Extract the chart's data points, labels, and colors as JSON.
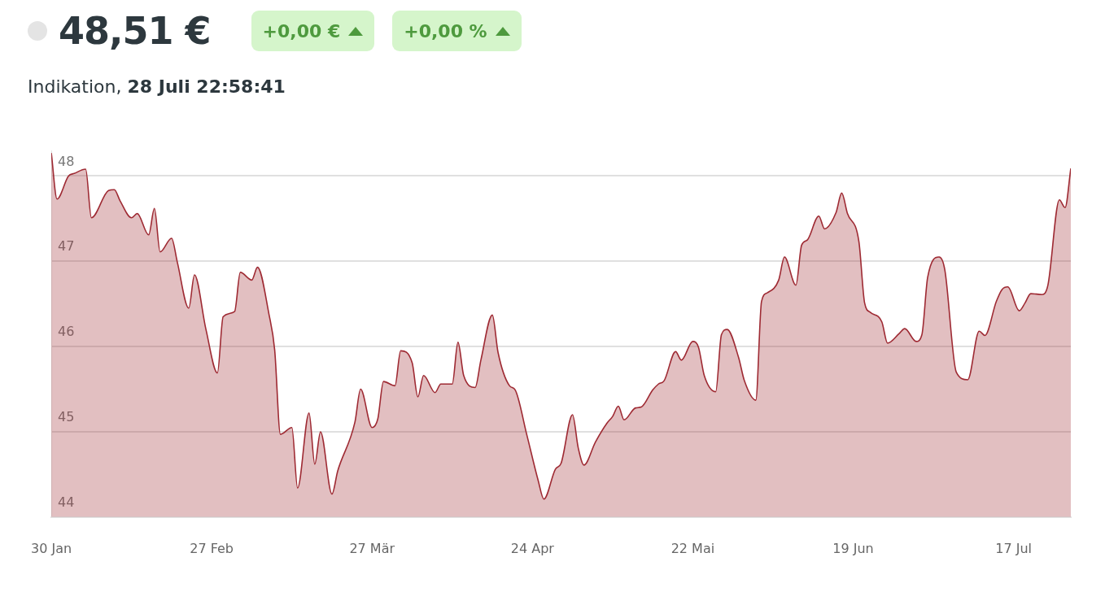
{
  "chart_data": {
    "type": "area",
    "title": "48,51 €",
    "subtitle": "Indikation, 28 Juli 22:58:41",
    "annotations": [
      "+0,00 €",
      "+0,00 %"
    ],
    "x": [
      "--01-30",
      "--01-31",
      "--02-02",
      "--02-03",
      "--02-05",
      "--02-06",
      "--02-09",
      "--02-10",
      "--02-11",
      "--02-13",
      "--02-14",
      "--02-16",
      "--02-17",
      "--02-18",
      "--02-20",
      "--02-21",
      "--02-23",
      "--02-24",
      "--02-26",
      "--02-28",
      "--03-01",
      "--03-03",
      "--03-04",
      "--03-06",
      "--03-07",
      "--03-09",
      "--03-10",
      "--03-11",
      "--03-13",
      "--03-14",
      "--03-16",
      "--03-17",
      "--03-18",
      "--03-20",
      "--03-21",
      "--03-24",
      "--03-25",
      "--03-27",
      "--03-28",
      "--03-29",
      "--03-31",
      "--04-01",
      "--04-03",
      "--04-04",
      "--04-05",
      "--04-07",
      "--04-08",
      "--04-10",
      "--04-11",
      "--04-12",
      "--04-14",
      "--04-15",
      "--04-17",
      "--04-18",
      "--04-20",
      "--04-21",
      "--04-23",
      "--04-25",
      "--04-26",
      "--04-28",
      "--04-29",
      "--05-01",
      "--05-02",
      "--05-03",
      "--05-05",
      "--05-07",
      "--05-08",
      "--05-09",
      "--05-10",
      "--05-12",
      "--05-13",
      "--05-15",
      "--05-16",
      "--05-17",
      "--05-19",
      "--05-20",
      "--05-22",
      "--05-23",
      "--05-24",
      "--05-26",
      "--05-27",
      "--05-28",
      "--05-30",
      "--05-31",
      "--06-02",
      "--06-03",
      "--06-04",
      "--06-06",
      "--06-07",
      "--06-09",
      "--06-10",
      "--06-11",
      "--06-13",
      "--06-14",
      "--06-16",
      "--06-17",
      "--06-18",
      "--06-20",
      "--06-21",
      "--06-22",
      "--06-24",
      "--06-25",
      "--06-27",
      "--06-28",
      "--06-30",
      "--07-01",
      "--07-02",
      "--07-04",
      "--07-05",
      "--07-07",
      "--07-09",
      "--07-11",
      "--07-12",
      "--07-14",
      "--07-15",
      "--07-16",
      "--07-18",
      "--07-19",
      "--07-20",
      "--07-22",
      "--07-23",
      "--07-25",
      "--07-26",
      "--07-27"
    ],
    "series": [
      {
        "color": "#9e2a33",
        "values": [
          48.27,
          47.73,
          48.0,
          48.03,
          48.08,
          47.51,
          47.83,
          47.84,
          47.71,
          47.51,
          47.56,
          47.31,
          47.62,
          47.11,
          47.27,
          46.99,
          46.45,
          46.84,
          46.2,
          45.69,
          46.35,
          46.41,
          46.87,
          46.78,
          46.93,
          46.38,
          45.96,
          44.97,
          45.05,
          44.34,
          45.22,
          44.62,
          45.0,
          44.27,
          44.54,
          45.11,
          45.5,
          45.05,
          45.15,
          45.59,
          45.54,
          45.95,
          45.81,
          45.41,
          45.66,
          45.46,
          45.56,
          45.56,
          46.05,
          45.66,
          45.52,
          45.84,
          46.37,
          45.93,
          45.54,
          45.49,
          44.97,
          44.43,
          44.21,
          44.56,
          44.63,
          45.2,
          44.81,
          44.61,
          44.88,
          45.1,
          45.18,
          45.3,
          45.14,
          45.28,
          45.29,
          45.49,
          45.56,
          45.6,
          45.94,
          45.84,
          46.06,
          45.99,
          45.66,
          45.47,
          46.14,
          46.2,
          45.87,
          45.6,
          45.37,
          46.53,
          46.63,
          46.78,
          47.05,
          46.72,
          47.19,
          47.25,
          47.53,
          47.38,
          47.57,
          47.8,
          47.56,
          47.23,
          46.51,
          46.4,
          46.29,
          46.04,
          46.15,
          46.21,
          46.06,
          46.14,
          46.81,
          47.05,
          46.9,
          45.7,
          45.61,
          46.18,
          46.13,
          46.53,
          46.67,
          46.7,
          46.42,
          46.51,
          46.62,
          46.61,
          46.72,
          47.72,
          47.63,
          48.09
        ]
      }
    ],
    "xlim": [
      "--01-30",
      "--07-27"
    ],
    "xticks": [
      {
        "value": "--01-30",
        "label": "30 Jan"
      },
      {
        "value": "--02-27",
        "label": "27 Feb"
      },
      {
        "value": "--03-27",
        "label": "27 Mär"
      },
      {
        "value": "--04-24",
        "label": "24 Apr"
      },
      {
        "value": "--05-22",
        "label": "22 Mai"
      },
      {
        "value": "--06-19",
        "label": "19 Jun"
      },
      {
        "value": "--07-17",
        "label": "17 Jul"
      }
    ],
    "ylim": [
      44,
      48.3
    ],
    "yticks": [
      44,
      45,
      46,
      47,
      48
    ],
    "grid": "y",
    "legend": false,
    "marker": "none",
    "line_style": "solid"
  }
}
